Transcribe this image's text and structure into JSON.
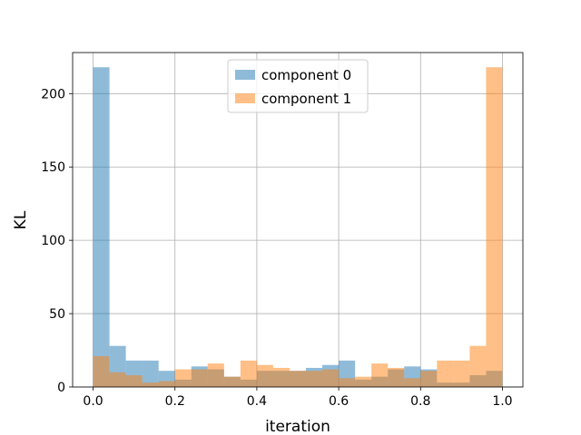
{
  "chart_data": {
    "type": "bar",
    "subtype": "overlaid-histogram",
    "title": "",
    "xlabel": "iteration",
    "ylabel": "KL",
    "xlim": [
      -0.05,
      1.05
    ],
    "ylim": [
      0,
      228
    ],
    "xticks": [
      0.0,
      0.2,
      0.4,
      0.6,
      0.8,
      1.0
    ],
    "xtick_labels": [
      "0.0",
      "0.2",
      "0.4",
      "0.6",
      "0.8",
      "1.0"
    ],
    "yticks": [
      0,
      50,
      100,
      150,
      200
    ],
    "ytick_labels": [
      "0",
      "50",
      "100",
      "150",
      "200"
    ],
    "grid": true,
    "legend_position": "top-center",
    "bin_edges": [
      0.0,
      0.04,
      0.08,
      0.12,
      0.16,
      0.2,
      0.24,
      0.28,
      0.32,
      0.36,
      0.4,
      0.44,
      0.48,
      0.52,
      0.56,
      0.6,
      0.64,
      0.68,
      0.72,
      0.76,
      0.8,
      0.84,
      0.88,
      0.92,
      0.96,
      1.0
    ],
    "series": [
      {
        "name": "component 0",
        "color": "#1f77b4",
        "values": [
          218,
          28,
          18,
          18,
          11,
          5,
          14,
          12,
          7,
          5,
          11,
          11,
          11,
          13,
          15,
          18,
          5,
          7,
          12,
          14,
          12,
          3,
          3,
          8,
          11
        ]
      },
      {
        "name": "component 1",
        "color": "#ff7f0e",
        "values": [
          21,
          10,
          8,
          3,
          4,
          12,
          12,
          16,
          7,
          18,
          15,
          13,
          11,
          11,
          12,
          6,
          7,
          16,
          13,
          6,
          11,
          18,
          18,
          28,
          218
        ]
      }
    ]
  }
}
